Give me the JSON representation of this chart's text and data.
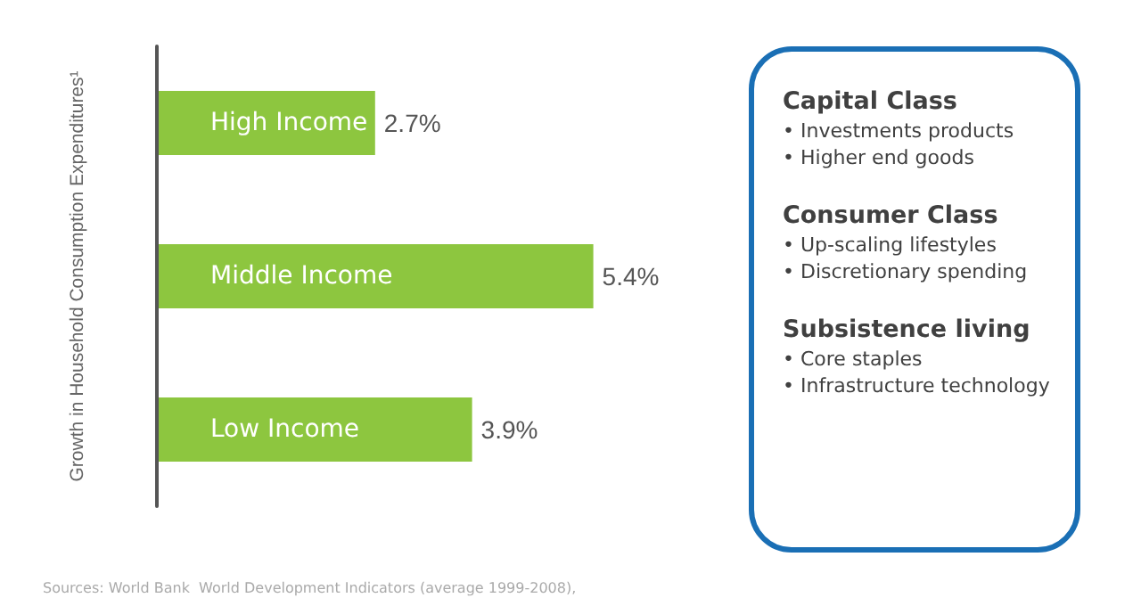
{
  "chart_data": [
    {
      "type": "bar",
      "orientation": "horizontal",
      "ylabel": "Growth in Household Consumption Expenditures¹",
      "categories": [
        "High Income",
        "Middle Income",
        "Low Income"
      ],
      "values": [
        2.7,
        5.4,
        3.9
      ],
      "value_labels": [
        "2.7%",
        "5.4%",
        "3.9%"
      ],
      "color": "#8dc63f",
      "tick_labels": "y",
      "annotations": [
        "Sources: World Bank  World Development Indicators (average 1999-2008),"
      ]
    },
    {
      "type": "other",
      "annotations": [
        "Capital Class",
        "• Investments products",
        "• Higher end goods",
        "Consumer Class",
        "• Up-scaling lifestyles",
        "• Discretionary spending",
        "Subsistence living",
        "• Core staples",
        "• Infrastructure technology"
      ]
    }
  ]
}
